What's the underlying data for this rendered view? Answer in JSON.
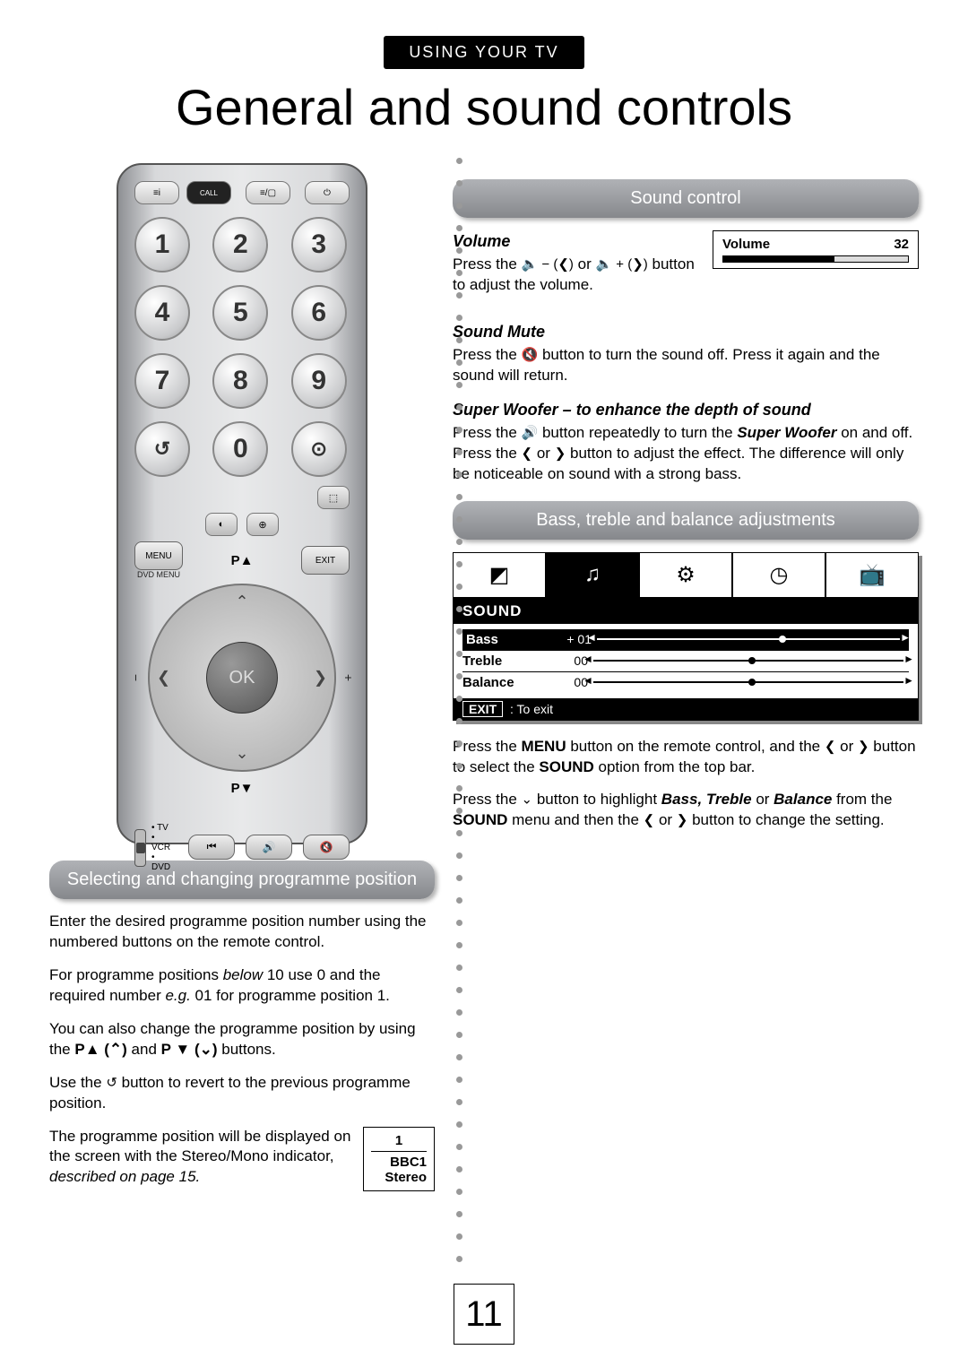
{
  "header_pill": "USING YOUR TV",
  "title": "General and sound controls",
  "page_number": "11",
  "remote": {
    "call": "CALL",
    "numbers": [
      "1",
      "2",
      "3",
      "4",
      "5",
      "6",
      "7",
      "8",
      "9",
      "0"
    ],
    "swap": "↺",
    "tv_input": "⊙",
    "menu": "MENU",
    "exit": "EXIT",
    "dvd_menu": "DVD\nMENU",
    "p_up": "P▲",
    "p_down": "P▼",
    "ok": "OK",
    "vol_minus": "−",
    "vol_plus": "+",
    "switch_labels": [
      "TV",
      "VCR",
      "DVD"
    ],
    "bottom_icons": [
      "⏮",
      "🔊",
      "🔇"
    ]
  },
  "left": {
    "pill": "Selecting and changing programme position",
    "p1": "Enter the desired programme position number using the numbered buttons on the remote control.",
    "p2_a": "For programme positions ",
    "p2_i": "below",
    "p2_b": " 10 use 0 and the required number ",
    "p2_i2": "e.g.",
    "p2_c": " 01 for programme position 1.",
    "p3_a": "You can also change the programme position by using the ",
    "p3_b": " and ",
    "p3_c": " buttons.",
    "p_up_inline": "P▲ (⌃)",
    "p_down_inline": "P ▼ (⌄)",
    "p4_a": "Use the ",
    "p4_b": " button to revert to the previous programme position.",
    "swap_icon": "↺",
    "p5_a": "The programme position will be displayed on the screen with the Stereo/Mono indicator, ",
    "p5_i": "described on page 15.",
    "osd_small": {
      "num": "1",
      "name": "BBC1",
      "mode": "Stereo"
    }
  },
  "right": {
    "pill1": "Sound control",
    "vol_h": "Volume",
    "vol_label": "Volume",
    "vol_value": "32",
    "vol_fill_pct": 60,
    "vol_p_a": "Press the ",
    "vol_p_b": " or ",
    "vol_p_c": " button to adjust the volume.",
    "vol_minus": "🔈 − (❮)",
    "vol_plus": "🔈 + (❯)",
    "mute_h": "Sound Mute",
    "mute_icon": "🔇",
    "mute_p_a": "Press the ",
    "mute_p_b": " button to turn the sound off. Press it again and the sound will return.",
    "woofer_h": "Super Woofer – to enhance the depth of sound",
    "woofer_icon": "🔊",
    "woofer_p_a": "Press the ",
    "woofer_p_b": " button repeatedly to turn the ",
    "woofer_i1": "Super Woofer",
    "woofer_p_c": " on and off. Press the ",
    "woofer_p_d": " or ",
    "woofer_p_e": " button to adjust the effect. The difference will only be noticeable on sound with a strong bass.",
    "left_arrow": "❮",
    "right_arrow": "❯",
    "pill2": "Bass, treble and balance adjustments",
    "osd": {
      "title": "SOUND",
      "rows": [
        {
          "label": "Bass",
          "value": "+ 01",
          "knob": 60,
          "hl": true
        },
        {
          "label": "Treble",
          "value": "00",
          "knob": 50,
          "hl": false
        },
        {
          "label": "Balance",
          "value": "00",
          "knob": 50,
          "hl": false
        }
      ],
      "exit": "EXIT",
      "exit_text": ": To exit",
      "icons": [
        "◩",
        "♫",
        "⚙",
        "◷",
        "📺"
      ]
    },
    "below_a": "Press the ",
    "below_menu": "MENU",
    "below_b": " button on the remote control, and the ",
    "below_c": " or ",
    "below_d": " button to select the ",
    "below_sound": "SOUND",
    "below_e": " option from the top bar.",
    "below2_a": "Press the ",
    "below2_down": "⌄",
    "below2_b": " button to highlight ",
    "below2_i": "Bass, Treble",
    "below2_c": " or ",
    "below2_i2": "Balance",
    "below2_d": " from the ",
    "below2_e": " menu and then the ",
    "below2_f": " or ",
    "below2_g": " button to change the setting."
  }
}
